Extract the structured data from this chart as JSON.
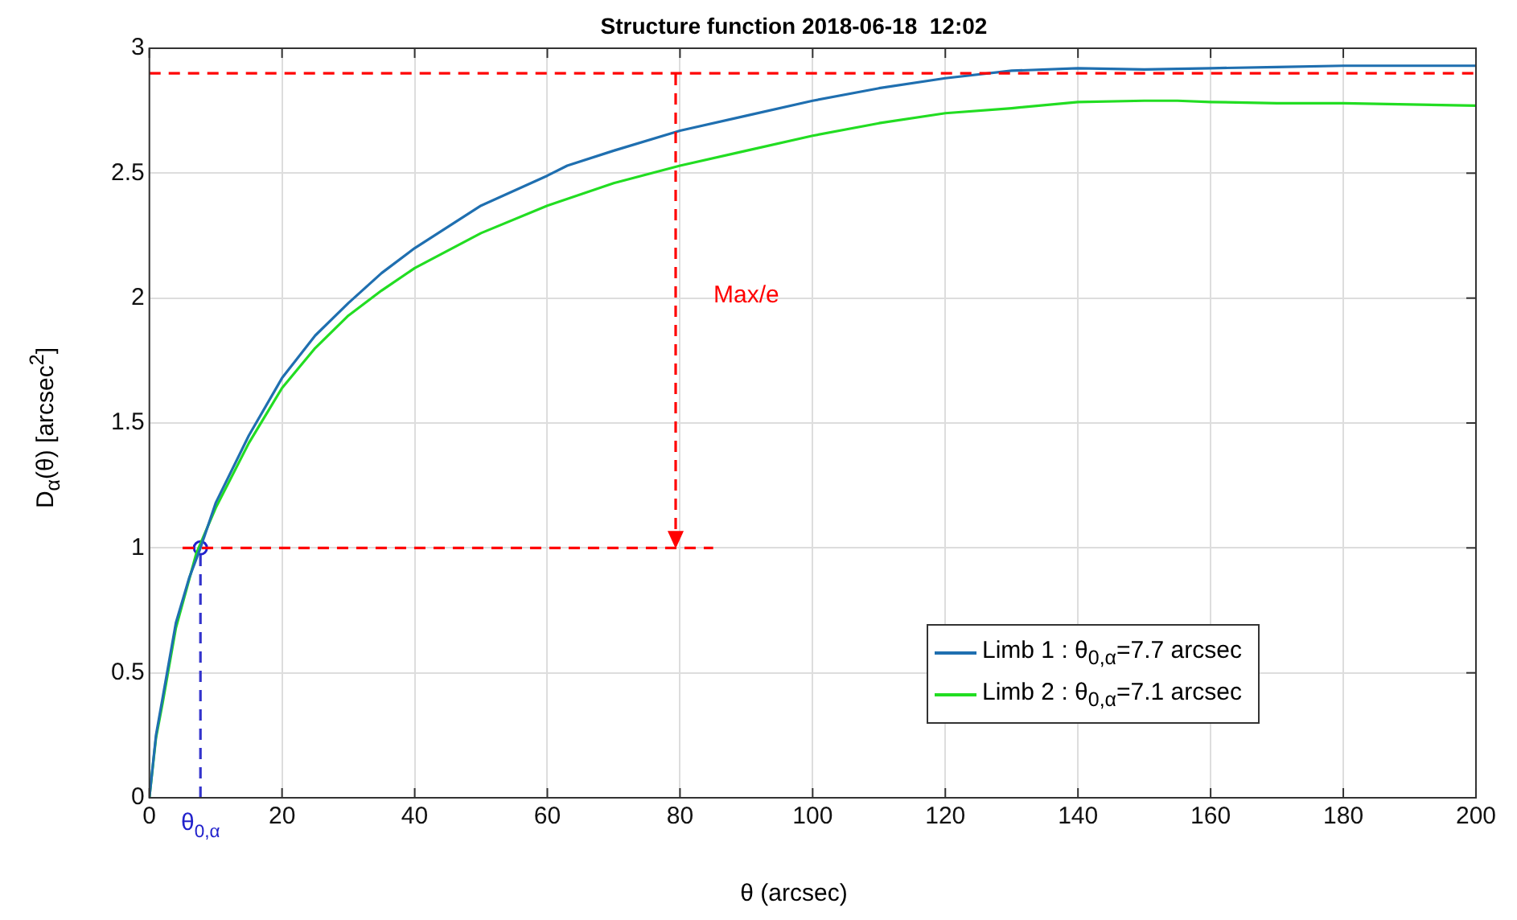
{
  "chart_data": {
    "type": "line",
    "title": "Structure function 2018-06-18  12:02",
    "xlabel": "θ (arcsec)",
    "ylabel": "D$_{α}$(θ) [arcsec$^{2}$]",
    "xlim": [
      0,
      200
    ],
    "xticks": [
      0,
      20,
      40,
      60,
      80,
      100,
      120,
      140,
      160,
      180,
      200
    ],
    "ylim": [
      0,
      3
    ],
    "yticks": [
      0,
      0.5,
      1,
      1.5,
      2,
      2.5,
      3
    ],
    "grid": true,
    "legend": "right",
    "marker": "none",
    "line_style": "solid",
    "series": [
      {
        "name": "Limb 1 :  θ$_{0,α}$=7.7 arcsec",
        "color": "#1f6fb0",
        "x": [
          0,
          1,
          2,
          4,
          6,
          7.7,
          10,
          15,
          20,
          25,
          30,
          35,
          40,
          50,
          60,
          63,
          70,
          80,
          90,
          100,
          110,
          120,
          130,
          140,
          150,
          160,
          170,
          180,
          190,
          200
        ],
        "values": [
          0,
          0.25,
          0.4,
          0.7,
          0.88,
          1.0,
          1.18,
          1.45,
          1.68,
          1.85,
          1.98,
          2.1,
          2.2,
          2.37,
          2.49,
          2.53,
          2.59,
          2.67,
          2.73,
          2.79,
          2.84,
          2.88,
          2.91,
          2.92,
          2.915,
          2.92,
          2.925,
          2.93,
          2.93,
          2.93
        ]
      },
      {
        "name": "Limb 2 :  θ$_{0,α}$=7.1 arcsec",
        "color": "#22dd22",
        "x": [
          0,
          1,
          2,
          4,
          7.1,
          10,
          15,
          20,
          25,
          30,
          35,
          40,
          50,
          60,
          70,
          80,
          90,
          100,
          110,
          120,
          130,
          140,
          150,
          155,
          160,
          170,
          180,
          190,
          200
        ],
        "values": [
          0,
          0.24,
          0.38,
          0.68,
          0.98,
          1.16,
          1.42,
          1.64,
          1.8,
          1.93,
          2.03,
          2.12,
          2.26,
          2.37,
          2.46,
          2.53,
          2.59,
          2.65,
          2.7,
          2.74,
          2.76,
          2.785,
          2.79,
          2.79,
          2.785,
          2.78,
          2.78,
          2.775,
          2.77
        ]
      },
      {
        "type": "line",
        "color": "#ff0000",
        "line_style": "dashed",
        "x": [
          5,
          85
        ],
        "values": [
          1,
          1
        ]
      },
      {
        "type": "line",
        "color": "#3333cc",
        "line_style": "dashed",
        "x": [
          7.7,
          7.7
        ],
        "values": [
          0,
          1
        ]
      },
      {
        "type": "scatter",
        "color": "#2222cc",
        "marker": "circle",
        "x": [
          7.7
        ],
        "values": [
          1
        ]
      }
    ],
    "ref_lines": [
      {
        "axis": "y",
        "value": 2.9,
        "color": "#ff0000",
        "line_style": "dashed"
      }
    ],
    "annotations": [
      "Max/e",
      {
        "text": "θ$_{0,α}$",
        "x": 7.7,
        "y": 0
      }
    ]
  }
}
